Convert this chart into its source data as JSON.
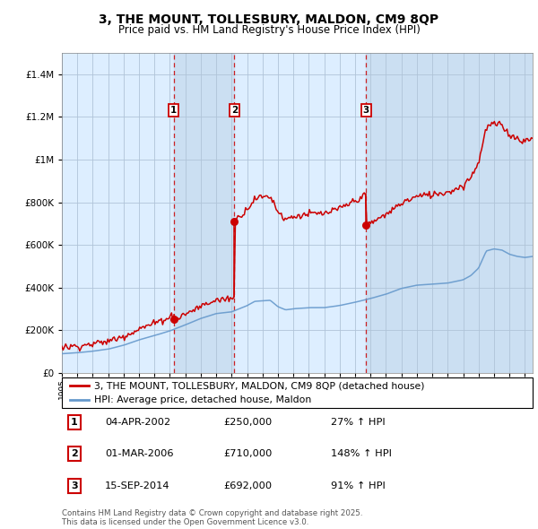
{
  "title": "3, THE MOUNT, TOLLESBURY, MALDON, CM9 8QP",
  "subtitle": "Price paid vs. HM Land Registry's House Price Index (HPI)",
  "red_label": "3, THE MOUNT, TOLLESBURY, MALDON, CM9 8QP (detached house)",
  "blue_label": "HPI: Average price, detached house, Maldon",
  "sale1_date": "04-APR-2002",
  "sale1_price": 250000,
  "sale1_pct": "27%",
  "sale2_date": "01-MAR-2006",
  "sale2_price": 710000,
  "sale2_pct": "148%",
  "sale3_date": "15-SEP-2014",
  "sale3_price": 692000,
  "sale3_pct": "91%",
  "footer": "Contains HM Land Registry data © Crown copyright and database right 2025.\nThis data is licensed under the Open Government Licence v3.0.",
  "red_color": "#cc0000",
  "blue_color": "#6699cc",
  "bg_color": "#ddeeff",
  "grid_color": "#b0c4d8",
  "shade_color": "#c8ddf0",
  "ylim": [
    0,
    1500000
  ],
  "yticks": [
    0,
    200000,
    400000,
    600000,
    800000,
    1000000,
    1200000,
    1400000
  ],
  "xlim_start": 1995.0,
  "xlim_end": 2025.5,
  "sale1_t": 2002.25,
  "sale2_t": 2006.17,
  "sale3_t": 2014.71
}
